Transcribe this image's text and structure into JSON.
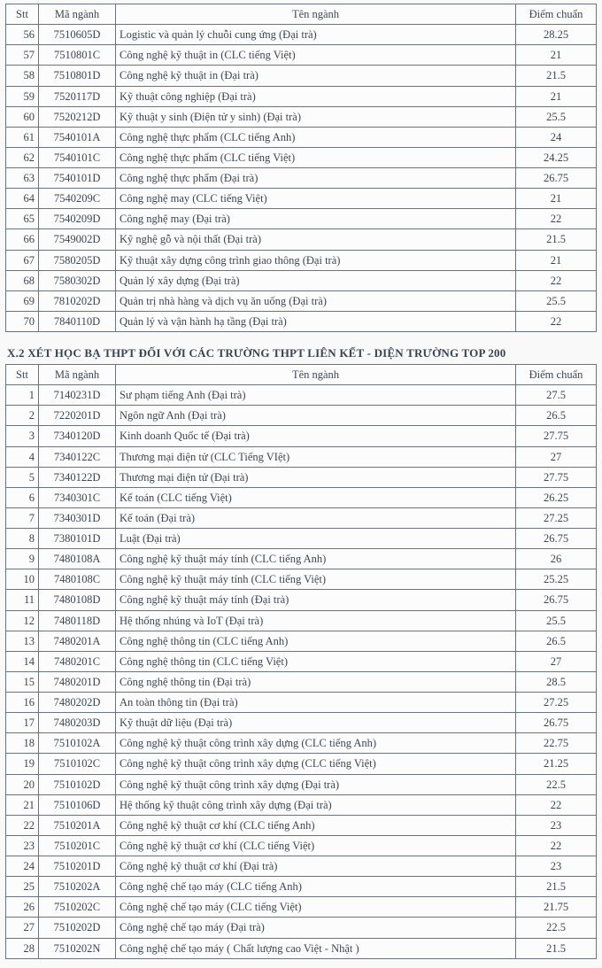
{
  "columns": {
    "stt": "Stt",
    "code": "Mã ngành",
    "name": "Tên ngành",
    "score": "Điểm chuẩn"
  },
  "table1_rows": [
    {
      "stt": "56",
      "code": "7510605D",
      "name": "Logistic và quản lý chuỗi cung ứng (Đại trà)",
      "score": "28.25"
    },
    {
      "stt": "57",
      "code": "7510801C",
      "name": "Công nghệ kỹ thuật in (CLC tiếng Việt)",
      "score": "21"
    },
    {
      "stt": "58",
      "code": "7510801D",
      "name": "Công nghệ kỹ thuật in (Đại trà)",
      "score": "21.5"
    },
    {
      "stt": "59",
      "code": "7520117D",
      "name": "Kỹ thuật công nghiệp (Đại trà)",
      "score": "21"
    },
    {
      "stt": "60",
      "code": "7520212D",
      "name": "Kỹ thuật y sinh (Điện tử y sinh) (Đại trà)",
      "score": "25.5"
    },
    {
      "stt": "61",
      "code": "7540101A",
      "name": "Công nghệ thực phẩm (CLC tiếng Anh)",
      "score": "24"
    },
    {
      "stt": "62",
      "code": "7540101C",
      "name": "Công nghệ thực phẩm (CLC tiếng Việt)",
      "score": "24.25"
    },
    {
      "stt": "63",
      "code": "7540101D",
      "name": "Công nghệ thực phẩm (Đại trà)",
      "score": "26.75"
    },
    {
      "stt": "64",
      "code": "7540209C",
      "name": "Công nghệ may (CLC tiếng Việt)",
      "score": "21"
    },
    {
      "stt": "65",
      "code": "7540209D",
      "name": "Công nghệ may (Đại trà)",
      "score": "22"
    },
    {
      "stt": "66",
      "code": "7549002D",
      "name": "Kỹ nghệ gỗ và nội thất (Đại trà)",
      "score": "21.5"
    },
    {
      "stt": "67",
      "code": "7580205D",
      "name": "Kỹ thuật xây dựng công trình giao thông (Đại trà)",
      "score": "21"
    },
    {
      "stt": "68",
      "code": "7580302D",
      "name": "Quản lý xây dựng (Đại trà)",
      "score": "22"
    },
    {
      "stt": "69",
      "code": "7810202D",
      "name": "Quản trị nhà hàng và dịch vụ ăn uống (Đại trà)",
      "score": "25.5"
    },
    {
      "stt": "70",
      "code": "7840110D",
      "name": "Quản lý và vận hành hạ tầng (Đại trà)",
      "score": "22"
    }
  ],
  "section2_title": "X.2 XÉT HỌC BẠ THPT ĐỐI VỚI CÁC TRƯỜNG THPT LIÊN KẾT - DIỆN TRƯỜNG TOP 200",
  "table2_rows": [
    {
      "stt": "1",
      "code": "7140231D",
      "name": "Sư phạm tiếng Anh (Đại trà)",
      "score": "27.5"
    },
    {
      "stt": "2",
      "code": "7220201D",
      "name": "Ngôn ngữ Anh (Đại trà)",
      "score": "26.5"
    },
    {
      "stt": "3",
      "code": "7340120D",
      "name": "Kinh doanh Quốc tế (Đại trà)",
      "score": "27.75"
    },
    {
      "stt": "4",
      "code": "7340122C",
      "name": "Thương mại điện tử (CLC Tiếng VIệt)",
      "score": "27"
    },
    {
      "stt": "5",
      "code": "7340122D",
      "name": "Thương mại điện tử (Đại trà)",
      "score": "27.75"
    },
    {
      "stt": "6",
      "code": "7340301C",
      "name": "Kế toán (CLC tiếng Việt)",
      "score": "26.25"
    },
    {
      "stt": "7",
      "code": "7340301D",
      "name": "Kế toán (Đại trà)",
      "score": "27.25"
    },
    {
      "stt": "8",
      "code": "7380101D",
      "name": "Luật (Đại trà)",
      "score": "26.75"
    },
    {
      "stt": "9",
      "code": "7480108A",
      "name": "Công nghệ kỹ thuật máy tính (CLC tiếng Anh)",
      "score": "26"
    },
    {
      "stt": "10",
      "code": "7480108C",
      "name": "Công nghệ kỹ thuật máy tính (CLC tiếng Việt)",
      "score": "25.25"
    },
    {
      "stt": "11",
      "code": "7480108D",
      "name": "Công nghệ kỹ thuật máy tính (Đại trà)",
      "score": "26.75"
    },
    {
      "stt": "12",
      "code": "7480118D",
      "name": "Hệ thống nhúng và IoT (Đại trà)",
      "score": "25.5"
    },
    {
      "stt": "13",
      "code": "7480201A",
      "name": "Công nghệ thông tin (CLC tiếng Anh)",
      "score": "26.5"
    },
    {
      "stt": "14",
      "code": "7480201C",
      "name": "Công nghệ thông tin (CLC tiếng Việt)",
      "score": "27"
    },
    {
      "stt": "15",
      "code": "7480201D",
      "name": "Công nghệ thông tin (Đại trà)",
      "score": "28.5"
    },
    {
      "stt": "16",
      "code": "7480202D",
      "name": "An toàn thông tin (Đại trà)",
      "score": "27.25"
    },
    {
      "stt": "17",
      "code": "7480203D",
      "name": "Kỹ thuật dữ liệu (Đại trà)",
      "score": "26.75"
    },
    {
      "stt": "18",
      "code": "7510102A",
      "name": "Công nghệ kỹ thuật công trình xây dựng (CLC tiếng Anh)",
      "score": "22.75"
    },
    {
      "stt": "19",
      "code": "7510102C",
      "name": "Công nghệ kỹ thuật công trình xây dựng (CLC tiếng Việt)",
      "score": "21.25"
    },
    {
      "stt": "20",
      "code": "7510102D",
      "name": "Công nghệ kỹ thuật công trình xây dựng (Đại trà)",
      "score": "22.5"
    },
    {
      "stt": "21",
      "code": "7510106D",
      "name": "Hệ thống kỹ thuật công trình xây dựng (Đại trà)",
      "score": "22"
    },
    {
      "stt": "22",
      "code": "7510201A",
      "name": "Công nghệ kỹ thuật cơ khí (CLC tiếng Anh)",
      "score": "23"
    },
    {
      "stt": "23",
      "code": "7510201C",
      "name": "Công nghệ kỹ thuật cơ khí (CLC tiếng Việt)",
      "score": "22"
    },
    {
      "stt": "24",
      "code": "7510201D",
      "name": "Công nghệ kỹ thuật cơ khí (Đại trà)",
      "score": "23"
    },
    {
      "stt": "25",
      "code": "7510202A",
      "name": "Công nghệ chế tạo máy (CLC tiếng Anh)",
      "score": "21.5"
    },
    {
      "stt": "26",
      "code": "7510202C",
      "name": "Công nghệ chế tạo máy (CLC tiếng Việt)",
      "score": "21.75"
    },
    {
      "stt": "27",
      "code": "7510202D",
      "name": "Công nghệ chế tạo máy (Đại trà)",
      "score": "22.5"
    },
    {
      "stt": "28",
      "code": "7510202N",
      "name": "Công nghệ chế tạo máy ( Chất lượng cao Việt - Nhật )",
      "score": "21.5"
    }
  ]
}
